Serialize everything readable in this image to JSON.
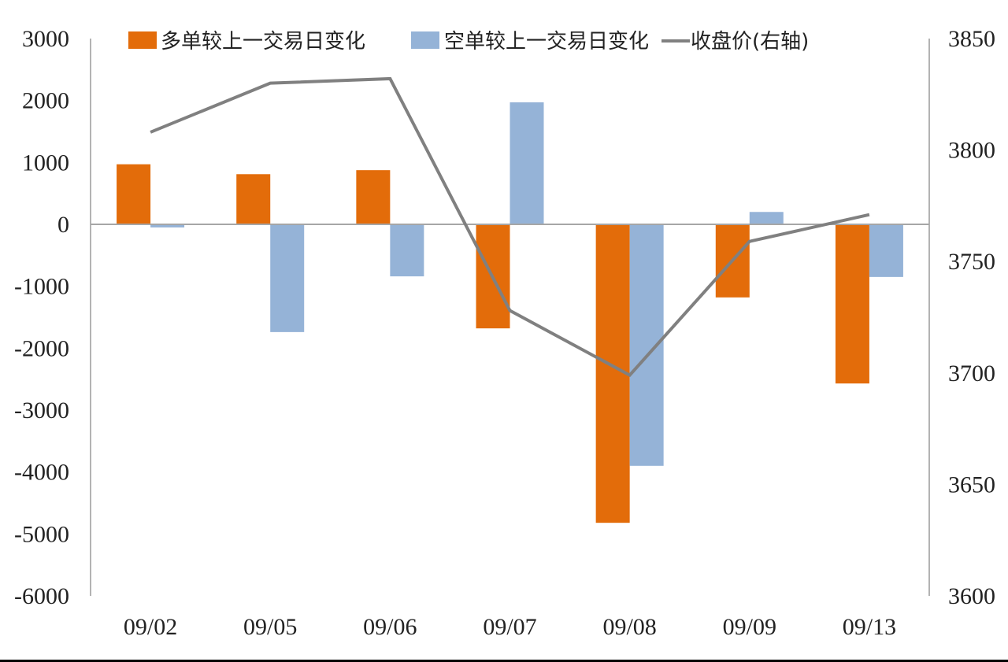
{
  "chart_data": {
    "type": "bar",
    "title": "",
    "xlabel": "",
    "ylabel": "",
    "y2label": "",
    "categories": [
      "09/02",
      "09/05",
      "09/06",
      "09/07",
      "09/08",
      "09/09",
      "09/13"
    ],
    "series": [
      {
        "name": "多单较上一交易日变化",
        "type": "bar",
        "axis": "left",
        "color": "#E36C0A",
        "values": [
          970,
          810,
          875,
          -1680,
          -4820,
          -1180,
          -2570
        ]
      },
      {
        "name": "空单较上一交易日变化",
        "type": "bar",
        "axis": "left",
        "color": "#95B3D7",
        "values": [
          -50,
          -1740,
          -840,
          1970,
          -3900,
          200,
          -850
        ]
      },
      {
        "name": "收盘价(右轴)",
        "type": "line",
        "axis": "right",
        "color": "#808080",
        "values": [
          3808,
          3830,
          3832,
          3728,
          3699,
          3759,
          3771
        ]
      }
    ],
    "ylim": [
      -6000,
      3000
    ],
    "y2lim": [
      3600,
      3850
    ],
    "yticks": [
      "3000",
      "2000",
      "1000",
      "0",
      "-1000",
      "-2000",
      "-3000",
      "-4000",
      "-5000",
      "-6000"
    ],
    "y2ticks": [
      "3850",
      "3800",
      "3750",
      "3700",
      "3650",
      "3600"
    ],
    "grid": false,
    "legend_position": "top"
  },
  "legend": {
    "items": [
      {
        "label": "多单较上一交易日变化",
        "color": "#E36C0A",
        "kind": "box"
      },
      {
        "label": "空单较上一交易日变化",
        "color": "#95B3D7",
        "kind": "box"
      },
      {
        "label": "收盘价(右轴)",
        "color": "#808080",
        "kind": "line"
      }
    ]
  }
}
